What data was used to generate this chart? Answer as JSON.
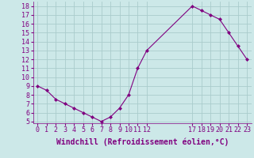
{
  "x": [
    0,
    1,
    2,
    3,
    4,
    5,
    6,
    7,
    8,
    9,
    10,
    11,
    12,
    17,
    18,
    19,
    20,
    21,
    22,
    23
  ],
  "y": [
    9,
    8.5,
    7.5,
    7,
    6.5,
    6,
    5.5,
    5,
    5.5,
    6.5,
    8,
    11,
    13,
    18,
    17.5,
    17,
    16.5,
    15,
    13.5,
    12
  ],
  "xlim": [
    -0.5,
    23.5
  ],
  "ylim": [
    4.8,
    18.5
  ],
  "xticks": [
    0,
    1,
    2,
    3,
    4,
    5,
    6,
    7,
    8,
    9,
    10,
    11,
    12,
    17,
    18,
    19,
    20,
    21,
    22,
    23
  ],
  "yticks": [
    5,
    6,
    7,
    8,
    9,
    10,
    11,
    12,
    13,
    14,
    15,
    16,
    17,
    18
  ],
  "xlabel": "Windchill (Refroidissement éolien,°C)",
  "line_color": "#800080",
  "marker": "D",
  "marker_size": 2,
  "bg_color": "#cce8e8",
  "grid_color": "#aacccc",
  "tick_label_color": "#800080",
  "xlabel_color": "#800080",
  "tick_fontsize": 6,
  "xlabel_fontsize": 7
}
